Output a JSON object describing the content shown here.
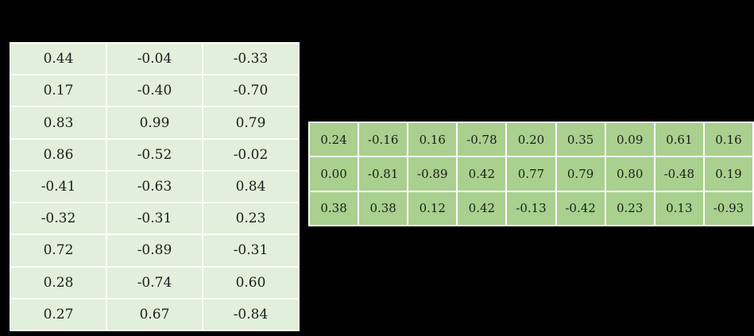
{
  "canvas": {
    "background_color": "#000000",
    "border_color": "#ffffff",
    "text_color": "#1c1c1c"
  },
  "chart_data": [
    {
      "type": "table",
      "name": "left-matrix",
      "rows": 9,
      "cols": 3,
      "cell_color": "#e2efda",
      "border_color": "#ffffff",
      "grid": true,
      "values": [
        [
          "0.44",
          "-0.04",
          "-0.33"
        ],
        [
          "0.17",
          "-0.40",
          "-0.70"
        ],
        [
          "0.83",
          "0.99",
          "0.79"
        ],
        [
          "0.86",
          "-0.52",
          "-0.02"
        ],
        [
          "-0.41",
          "-0.63",
          "0.84"
        ],
        [
          "-0.32",
          "-0.31",
          "0.23"
        ],
        [
          "0.72",
          "-0.89",
          "-0.31"
        ],
        [
          "0.28",
          "-0.74",
          "0.60"
        ],
        [
          "0.27",
          "0.67",
          "-0.84"
        ]
      ]
    },
    {
      "type": "table",
      "name": "right-matrix",
      "rows": 3,
      "cols": 9,
      "cell_color": "#a9d08e",
      "border_color": "#ffffff",
      "grid": true,
      "values": [
        [
          "0.24",
          "-0.16",
          "0.16",
          "-0.78",
          "0.20",
          "0.35",
          "0.09",
          "0.61",
          "0.16"
        ],
        [
          "0.00",
          "-0.81",
          "-0.89",
          "0.42",
          "0.77",
          "0.79",
          "0.80",
          "-0.48",
          "0.19"
        ],
        [
          "0.38",
          "0.38",
          "0.12",
          "0.42",
          "-0.13",
          "-0.42",
          "0.23",
          "0.13",
          "-0.93"
        ]
      ]
    }
  ]
}
